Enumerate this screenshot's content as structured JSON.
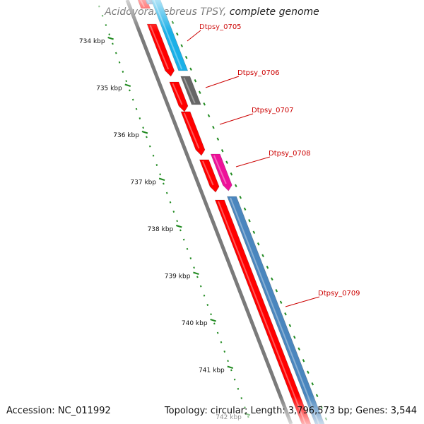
{
  "title": "Acidovorax ebreus TPSY, complete genome",
  "accession": "Accession: NC_011992",
  "summary": "Topology: circular; Length: 3,796,573 bp; Genes: 3,544",
  "ticks": [
    {
      "label": "734 kbp"
    },
    {
      "label": "735 kbp"
    },
    {
      "label": "736 kbp"
    },
    {
      "label": "737 kbp"
    },
    {
      "label": "738 kbp"
    },
    {
      "label": "739 kbp"
    },
    {
      "label": "740 kbp"
    },
    {
      "label": "741 kbp"
    },
    {
      "label": "742 kbp"
    }
  ],
  "genes": [
    {
      "label": "Dtpsy_0705"
    },
    {
      "label": "Dtpsy_0706"
    },
    {
      "label": "Dtpsy_0707"
    },
    {
      "label": "Dtpsy_0708"
    },
    {
      "label": "Dtpsy_0709"
    }
  ],
  "colors": {
    "cds": "#ff0000",
    "gene_blue": "#4a86be",
    "gene_cyan": "#1ab0e8",
    "gene_gray": "#666666",
    "gene_magenta": "#ee1199",
    "backbone": "#7a7a7a",
    "ruler": "#228b22",
    "label": "#cc0000"
  }
}
